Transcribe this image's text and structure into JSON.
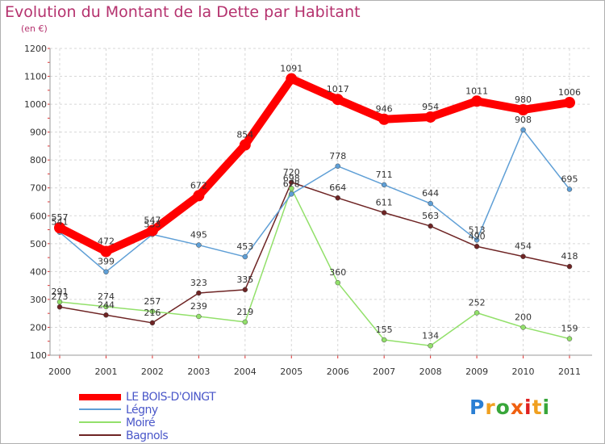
{
  "title": "Evolution du Montant de la Dette par Habitant",
  "subtitle": "(en €)",
  "logo": {
    "letters": [
      "P",
      "r",
      "o",
      "x",
      "i",
      "t",
      "i"
    ],
    "colors": [
      "#2a7fd4",
      "#f0a020",
      "#38a63a",
      "#f06010",
      "#e02020",
      "#f0a020",
      "#38a63a"
    ]
  },
  "chart_data": {
    "type": "line",
    "x": [
      "2000",
      "2001",
      "2002",
      "2003",
      "2004",
      "2005",
      "2006",
      "2007",
      "2008",
      "2009",
      "2010",
      "2011"
    ],
    "ylim": [
      100,
      1200
    ],
    "yticks": [
      100,
      200,
      300,
      400,
      500,
      600,
      700,
      800,
      900,
      1000,
      1100,
      1200
    ],
    "grid": true,
    "legend_position": "bottom-left",
    "series": [
      {
        "name": "LE BOIS-D'OINGT",
        "color": "#ff0000",
        "values": [
          557,
          472,
          547,
          672,
          854,
          1091,
          1017,
          946,
          954,
          1011,
          980,
          1006
        ]
      },
      {
        "name": "Légny",
        "color": "#5f9fd6",
        "values": [
          541,
          399,
          533,
          495,
          453,
          678,
          778,
          711,
          644,
          513,
          908,
          695
        ]
      },
      {
        "name": "Moiré",
        "color": "#92e06a",
        "values": [
          291,
          274,
          257,
          239,
          219,
          698,
          360,
          155,
          134,
          252,
          200,
          159
        ]
      },
      {
        "name": "Bagnols",
        "color": "#6e2424",
        "values": [
          273,
          244,
          216,
          323,
          335,
          720,
          664,
          611,
          563,
          490,
          454,
          418
        ]
      }
    ]
  }
}
